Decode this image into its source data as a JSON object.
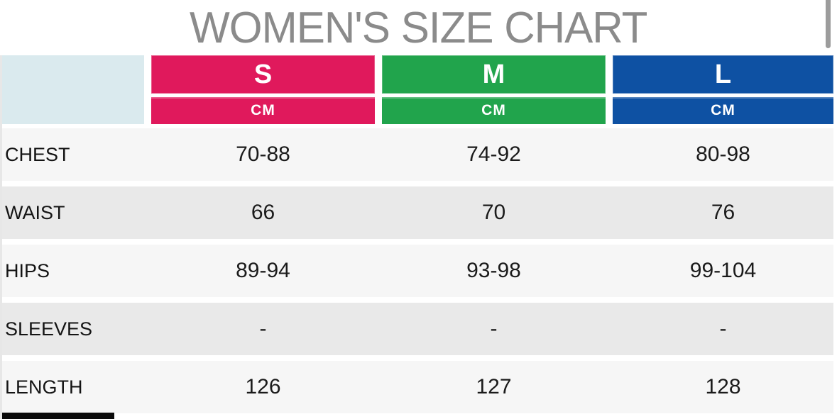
{
  "page": {
    "title": "WOMEN'S SIZE CHART"
  },
  "table": {
    "unit": "CM",
    "header_bg": "#DAEAEE",
    "row_bg": "#F6F6F6",
    "row_alt_bg": "#E9E9E9",
    "columns": [
      {
        "id": "s",
        "label": "S",
        "color": "#E0195C"
      },
      {
        "id": "m",
        "label": "M",
        "color": "#21A44C"
      },
      {
        "id": "l",
        "label": "L",
        "color": "#0E51A3"
      }
    ],
    "rows": [
      {
        "label": "CHEST",
        "values": [
          "70-88",
          "74-92",
          "80-98"
        ]
      },
      {
        "label": "WAIST",
        "values": [
          "66",
          "70",
          "76"
        ]
      },
      {
        "label": "HIPS",
        "values": [
          "89-94",
          "93-98",
          "99-104"
        ]
      },
      {
        "label": "SLEEVES",
        "values": [
          "-",
          "-",
          "-"
        ]
      },
      {
        "label": "LENGTH",
        "values": [
          "126",
          "127",
          "128"
        ]
      }
    ]
  },
  "chart_data": {
    "type": "table",
    "title": "WOMEN'S SIZE CHART",
    "unit": "CM",
    "columns": [
      "S",
      "M",
      "L"
    ],
    "row_labels": [
      "CHEST",
      "WAIST",
      "HIPS",
      "SLEEVES",
      "LENGTH"
    ],
    "cells": {
      "CHEST": [
        "70-88",
        "74-92",
        "80-98"
      ],
      "WAIST": [
        "66",
        "70",
        "76"
      ],
      "HIPS": [
        "89-94",
        "93-98",
        "99-104"
      ],
      "SLEEVES": [
        "-",
        "-",
        "-"
      ],
      "LENGTH": [
        "126",
        "127",
        "128"
      ]
    }
  }
}
